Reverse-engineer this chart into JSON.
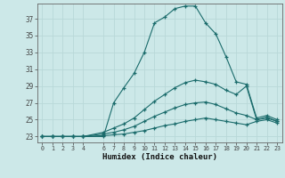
{
  "xlabel": "Humidex (Indice chaleur)",
  "background_color": "#cce8e8",
  "grid_color": "#b8d8d8",
  "line_color": "#1a6b6b",
  "xlim": [
    -0.5,
    23.5
  ],
  "ylim": [
    22.3,
    38.8
  ],
  "yticks": [
    23,
    25,
    27,
    29,
    31,
    33,
    35,
    37
  ],
  "xtick_labels": [
    "0",
    "1",
    "2",
    "3",
    "4",
    "6",
    "7",
    "8",
    "9",
    "10",
    "11",
    "12",
    "13",
    "14",
    "15",
    "16",
    "17",
    "18",
    "19",
    "20",
    "21",
    "22",
    "23"
  ],
  "xtick_pos": [
    0,
    1,
    2,
    3,
    4,
    6,
    7,
    8,
    9,
    10,
    11,
    12,
    13,
    14,
    15,
    16,
    17,
    18,
    19,
    20,
    21,
    22,
    23
  ],
  "line1_x": [
    0,
    1,
    2,
    3,
    4,
    6,
    7,
    8,
    9,
    10,
    11,
    12,
    13,
    14,
    15,
    16,
    17,
    18,
    19,
    20,
    21,
    22,
    23
  ],
  "line1_y": [
    23,
    23,
    23,
    23,
    23,
    23,
    27.0,
    28.8,
    30.5,
    33.0,
    36.5,
    37.2,
    38.2,
    38.5,
    38.5,
    36.5,
    35.2,
    32.5,
    29.5,
    29.2,
    25.2,
    25.5,
    25.0
  ],
  "line2_x": [
    0,
    1,
    2,
    3,
    4,
    6,
    7,
    8,
    9,
    10,
    11,
    12,
    13,
    14,
    15,
    16,
    17,
    18,
    19,
    20,
    21,
    22,
    23
  ],
  "line2_y": [
    23,
    23,
    23,
    23,
    23,
    23.5,
    24.0,
    24.5,
    25.2,
    26.2,
    27.2,
    28.0,
    28.8,
    29.4,
    29.7,
    29.5,
    29.2,
    28.5,
    28.0,
    29.0,
    25.0,
    25.3,
    24.8
  ],
  "line3_x": [
    0,
    1,
    2,
    3,
    4,
    6,
    7,
    8,
    9,
    10,
    11,
    12,
    13,
    14,
    15,
    16,
    17,
    18,
    19,
    20,
    21,
    22,
    23
  ],
  "line3_y": [
    23,
    23,
    23,
    23,
    23,
    23.3,
    23.5,
    23.8,
    24.2,
    24.8,
    25.4,
    25.9,
    26.4,
    26.8,
    27.0,
    27.1,
    26.8,
    26.3,
    25.8,
    25.5,
    25.0,
    25.2,
    24.8
  ],
  "line4_x": [
    0,
    1,
    2,
    3,
    4,
    6,
    7,
    8,
    9,
    10,
    11,
    12,
    13,
    14,
    15,
    16,
    17,
    18,
    19,
    20,
    21,
    22,
    23
  ],
  "line4_y": [
    23,
    23,
    23,
    23,
    23,
    23.1,
    23.2,
    23.3,
    23.5,
    23.7,
    24.0,
    24.3,
    24.5,
    24.8,
    25.0,
    25.2,
    25.0,
    24.8,
    24.6,
    24.4,
    24.8,
    25.0,
    24.6
  ]
}
